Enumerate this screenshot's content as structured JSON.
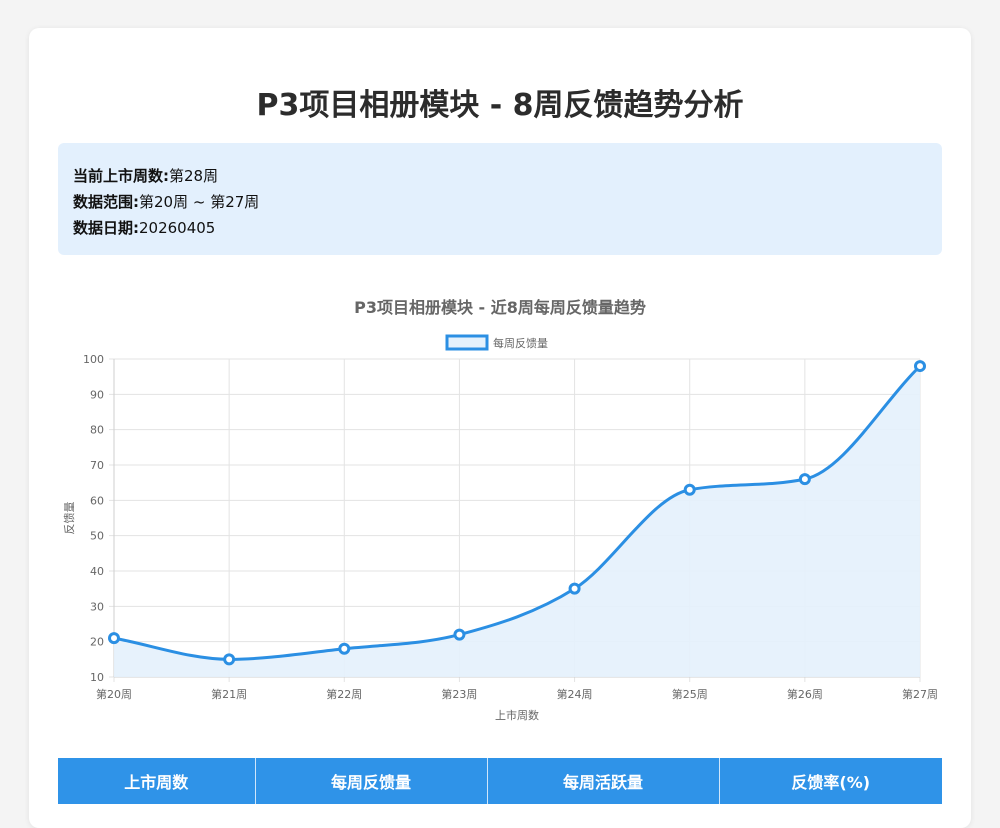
{
  "page": {
    "title": "P3项目相册模块 - 8周反馈趋势分析"
  },
  "info": {
    "current_week_label": "当前上市周数:",
    "current_week_value": "第28周",
    "range_label": "数据范围:",
    "range_value": "第20周 ~ 第27周",
    "date_label": "数据日期:",
    "date_value": "20260405"
  },
  "chart_data": {
    "type": "line",
    "title": "P3项目相册模块 - 近8周每周反馈量趋势",
    "xlabel": "上市周数",
    "ylabel": "反馈量",
    "categories": [
      "第20周",
      "第21周",
      "第22周",
      "第23周",
      "第24周",
      "第25周",
      "第26周",
      "第27周"
    ],
    "series": [
      {
        "name": "每周反馈量",
        "values": [
          21,
          15,
          18,
          22,
          35,
          63,
          66,
          98
        ]
      }
    ],
    "ylim": [
      10,
      100
    ],
    "yticks": [
      10,
      20,
      30,
      40,
      50,
      60,
      70,
      80,
      90,
      100
    ],
    "grid": true,
    "legend_position": "top",
    "line_color": "#2b8fe3",
    "fill_color": "#e4f1fc",
    "smooth": true
  },
  "table": {
    "headers": [
      "上市周数",
      "每周反馈量",
      "每周活跃量",
      "反馈率(%)"
    ]
  },
  "colors": {
    "header_bg": "#2f93e8",
    "info_bg": "#e3f0fd"
  }
}
